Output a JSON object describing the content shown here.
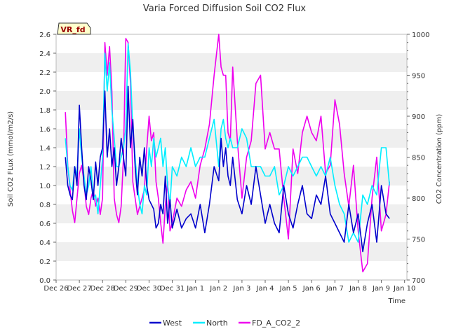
{
  "chart_data": {
    "type": "line",
    "title": "Varia Forced Diffusion Soil CO2 Flux",
    "badge": "VR_fd",
    "xlabel": "Time",
    "ylabel_left": "Soil CO2 FLux (mmol/m2/s)",
    "ylabel_right": "CO2 Concentration (ppm)",
    "xlim": [
      0,
      15.1
    ],
    "ylim_left": [
      0,
      2.6
    ],
    "ylim_right": [
      700,
      1000
    ],
    "grid": "horizontal bands",
    "legend_placement": "bottom-center",
    "x_ticks": [
      {
        "x": 0,
        "label": "Dec 26"
      },
      {
        "x": 1,
        "label": "Dec 27"
      },
      {
        "x": 2,
        "label": "Dec 28"
      },
      {
        "x": 3,
        "label": "Dec 29"
      },
      {
        "x": 4,
        "label": "Dec 30"
      },
      {
        "x": 5,
        "label": "Dec 31"
      },
      {
        "x": 6,
        "label": "Jan 1"
      },
      {
        "x": 7,
        "label": "Jan 2"
      },
      {
        "x": 8,
        "label": "Jan 3"
      },
      {
        "x": 9,
        "label": "Jan 4"
      },
      {
        "x": 10,
        "label": "Jan 5"
      },
      {
        "x": 11,
        "label": "Jan 6"
      },
      {
        "x": 12,
        "label": "Jan 7"
      },
      {
        "x": 13,
        "label": "Jan 8"
      },
      {
        "x": 14,
        "label": "Jan 9"
      },
      {
        "x": 15,
        "label": "Jan 10"
      }
    ],
    "y_ticks_left": [
      "0.0",
      "0.2",
      "0.4",
      "0.6",
      "0.8",
      "1.0",
      "1.2",
      "1.4",
      "1.6",
      "1.8",
      "2.0",
      "2.2",
      "2.4",
      "2.6"
    ],
    "y_ticks_right": [
      "700",
      "750",
      "800",
      "850",
      "900",
      "950",
      "1000"
    ],
    "series": [
      {
        "name": "West",
        "axis": "left",
        "color": "#0000cc",
        "x": [
          0.4,
          0.5,
          0.6,
          0.7,
          0.8,
          0.9,
          1.0,
          1.1,
          1.2,
          1.3,
          1.4,
          1.5,
          1.6,
          1.7,
          1.8,
          1.9,
          2.0,
          2.1,
          2.2,
          2.3,
          2.4,
          2.5,
          2.6,
          2.7,
          2.8,
          2.9,
          3.0,
          3.1,
          3.2,
          3.3,
          3.4,
          3.5,
          3.6,
          3.7,
          3.8,
          3.9,
          4.0,
          4.1,
          4.2,
          4.3,
          4.4,
          4.5,
          4.6,
          4.7,
          4.8,
          4.9,
          5.0,
          5.2,
          5.4,
          5.6,
          5.8,
          6.0,
          6.2,
          6.4,
          6.6,
          6.8,
          7.0,
          7.1,
          7.2,
          7.3,
          7.4,
          7.5,
          7.6,
          7.8,
          8.0,
          8.2,
          8.4,
          8.6,
          8.8,
          9.0,
          9.2,
          9.4,
          9.6,
          9.8,
          10.0,
          10.2,
          10.4,
          10.6,
          10.8,
          11.0,
          11.2,
          11.4,
          11.6,
          11.8,
          12.0,
          12.2,
          12.4,
          12.6,
          12.8,
          13.0,
          13.2,
          13.4,
          13.6,
          13.8,
          14.0,
          14.2,
          14.35
        ],
        "values": [
          1.3,
          1.0,
          0.9,
          0.85,
          1.2,
          1.0,
          1.85,
          1.4,
          1.0,
          0.85,
          1.2,
          1.05,
          0.85,
          1.25,
          1.0,
          1.3,
          1.4,
          2.0,
          1.3,
          1.6,
          1.2,
          1.4,
          1.0,
          1.2,
          1.5,
          1.3,
          1.1,
          2.05,
          1.4,
          1.7,
          1.2,
          0.9,
          1.3,
          1.1,
          1.4,
          1.0,
          0.85,
          0.8,
          0.75,
          0.55,
          0.6,
          0.8,
          0.7,
          1.1,
          0.6,
          0.85,
          0.55,
          0.75,
          0.55,
          0.65,
          0.7,
          0.55,
          0.8,
          0.5,
          0.8,
          1.2,
          1.05,
          1.5,
          1.2,
          1.4,
          1.1,
          1.0,
          1.3,
          0.85,
          0.7,
          1.0,
          0.8,
          1.2,
          0.9,
          0.6,
          0.8,
          0.6,
          0.5,
          1.0,
          0.7,
          0.55,
          0.8,
          1.0,
          0.7,
          0.65,
          0.9,
          0.8,
          1.1,
          0.7,
          0.6,
          0.5,
          0.4,
          0.8,
          0.5,
          0.7,
          0.3,
          0.6,
          0.8,
          0.4,
          1.0,
          0.7,
          0.65
        ]
      },
      {
        "name": "North",
        "axis": "left",
        "color": "#00eeff",
        "x": [
          0.4,
          0.5,
          0.6,
          0.7,
          0.8,
          0.9,
          1.0,
          1.1,
          1.2,
          1.3,
          1.4,
          1.5,
          1.6,
          1.7,
          1.8,
          1.9,
          2.0,
          2.1,
          2.2,
          2.3,
          2.4,
          2.5,
          2.6,
          2.7,
          2.8,
          2.9,
          3.0,
          3.1,
          3.2,
          3.3,
          3.4,
          3.5,
          3.6,
          3.7,
          3.8,
          3.9,
          4.0,
          4.1,
          4.2,
          4.3,
          4.4,
          4.5,
          4.6,
          4.7,
          4.8,
          4.9,
          5.0,
          5.2,
          5.4,
          5.6,
          5.8,
          6.0,
          6.2,
          6.4,
          6.6,
          6.8,
          7.0,
          7.1,
          7.2,
          7.3,
          7.4,
          7.5,
          7.6,
          7.8,
          8.0,
          8.2,
          8.4,
          8.6,
          8.8,
          9.0,
          9.2,
          9.4,
          9.6,
          9.8,
          10.0,
          10.2,
          10.4,
          10.6,
          10.8,
          11.0,
          11.2,
          11.4,
          11.6,
          11.8,
          12.0,
          12.2,
          12.4,
          12.6,
          12.8,
          13.0,
          13.2,
          13.4,
          13.6,
          13.8,
          14.0,
          14.2,
          14.35
        ],
        "values": [
          1.5,
          1.2,
          1.0,
          0.95,
          1.2,
          1.1,
          1.6,
          1.3,
          1.1,
          0.9,
          1.0,
          1.2,
          0.85,
          0.9,
          0.7,
          1.0,
          1.3,
          2.4,
          2.0,
          2.3,
          1.8,
          1.5,
          1.2,
          1.2,
          1.3,
          1.4,
          1.6,
          2.5,
          2.2,
          1.6,
          1.3,
          1.0,
          0.8,
          0.7,
          1.0,
          0.9,
          1.4,
          1.2,
          1.5,
          1.3,
          1.4,
          1.5,
          1.2,
          1.4,
          1.0,
          0.8,
          1.2,
          1.1,
          1.3,
          1.2,
          1.4,
          1.2,
          1.3,
          1.3,
          1.5,
          1.7,
          1.2,
          1.6,
          1.7,
          1.5,
          1.4,
          1.5,
          1.4,
          1.4,
          1.6,
          1.5,
          1.2,
          1.2,
          1.2,
          1.1,
          1.1,
          1.2,
          0.9,
          1.0,
          1.2,
          1.1,
          1.2,
          1.3,
          1.3,
          1.2,
          1.1,
          1.2,
          1.1,
          1.3,
          1.0,
          0.8,
          0.7,
          0.4,
          0.5,
          0.4,
          0.9,
          0.8,
          1.0,
          0.9,
          1.4,
          1.4,
          1.0
        ]
      },
      {
        "name": "FD_A_CO2_2",
        "axis": "right",
        "color": "#ee00ee",
        "x": [
          0.4,
          0.5,
          0.6,
          0.7,
          0.8,
          0.9,
          1.0,
          1.1,
          1.2,
          1.3,
          1.4,
          1.5,
          1.6,
          1.7,
          1.8,
          1.9,
          2.0,
          2.1,
          2.2,
          2.3,
          2.4,
          2.5,
          2.6,
          2.7,
          2.8,
          2.9,
          3.0,
          3.1,
          3.2,
          3.3,
          3.4,
          3.5,
          3.6,
          3.7,
          3.8,
          3.9,
          4.0,
          4.1,
          4.2,
          4.3,
          4.4,
          4.5,
          4.6,
          4.7,
          4.8,
          4.9,
          5.0,
          5.2,
          5.4,
          5.6,
          5.8,
          6.0,
          6.2,
          6.4,
          6.6,
          6.8,
          7.0,
          7.1,
          7.2,
          7.3,
          7.4,
          7.5,
          7.6,
          7.8,
          8.0,
          8.2,
          8.4,
          8.6,
          8.8,
          9.0,
          9.2,
          9.4,
          9.6,
          9.8,
          10.0,
          10.2,
          10.4,
          10.6,
          10.8,
          11.0,
          11.2,
          11.4,
          11.6,
          11.8,
          12.0,
          12.2,
          12.4,
          12.6,
          12.8,
          13.0,
          13.2,
          13.4,
          13.6,
          13.8,
          14.0,
          14.2,
          14.35
        ],
        "values": [
          905,
          840,
          810,
          785,
          770,
          800,
          830,
          840,
          820,
          790,
          780,
          800,
          810,
          790,
          800,
          780,
          800,
          990,
          950,
          985,
          930,
          800,
          780,
          770,
          790,
          850,
          995,
          990,
          940,
          820,
          800,
          780,
          790,
          800,
          810,
          860,
          900,
          870,
          880,
          820,
          800,
          770,
          745,
          790,
          820,
          760,
          770,
          800,
          790,
          810,
          820,
          800,
          840,
          860,
          890,
          950,
          1000,
          960,
          950,
          950,
          880,
          870,
          960,
          870,
          800,
          850,
          870,
          940,
          950,
          860,
          880,
          860,
          860,
          800,
          750,
          860,
          830,
          880,
          900,
          880,
          870,
          900,
          830,
          840,
          920,
          890,
          830,
          790,
          840,
          760,
          710,
          720,
          800,
          850,
          760,
          780,
          820
        ]
      }
    ]
  }
}
